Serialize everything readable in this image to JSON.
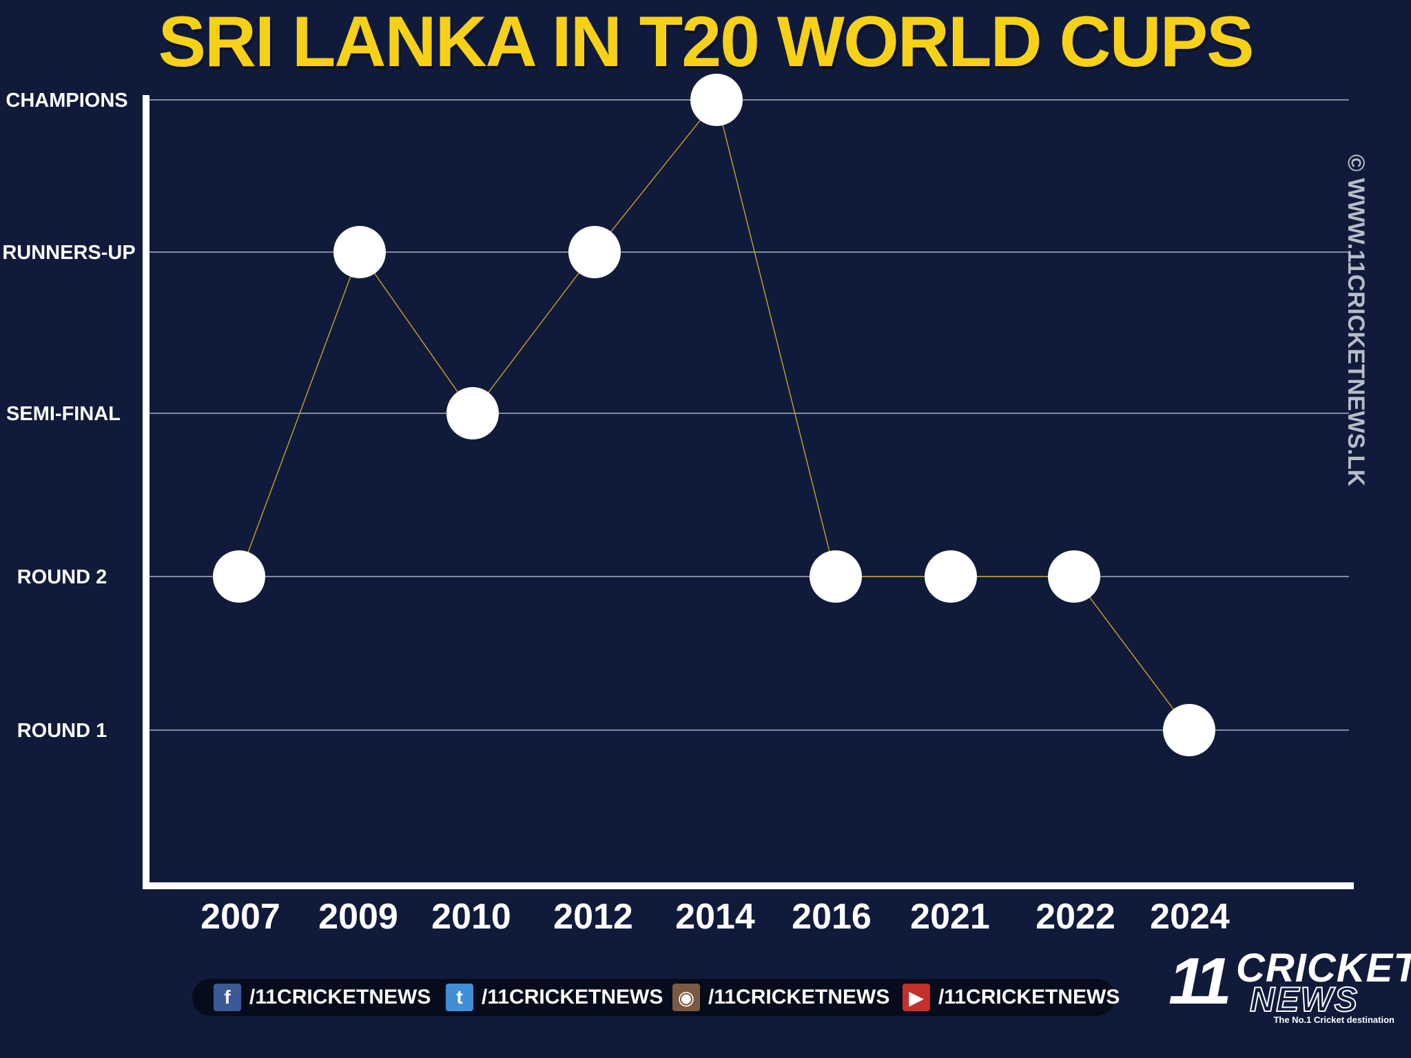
{
  "chart_data": {
    "type": "line",
    "title": "SRI LANKA IN T20 WORLD CUPS",
    "categories": [
      "2007",
      "2009",
      "2010",
      "2012",
      "2014",
      "2016",
      "2021",
      "2022",
      "2024"
    ],
    "y_levels": [
      "ROUND 1",
      "ROUND 2",
      "SEMI-FINAL",
      "RUNNERS-UP",
      "CHAMPIONS"
    ],
    "values": [
      "ROUND 2",
      "RUNNERS-UP",
      "SEMI-FINAL",
      "RUNNERS-UP",
      "CHAMPIONS",
      "ROUND 2",
      "ROUND 2",
      "ROUND 2",
      "ROUND 1"
    ],
    "grid": true,
    "colors": {
      "background": "#101b3b",
      "line": "#c9a227",
      "marker": "#ffffff",
      "title": "#f7d117",
      "axis": "#ffffff",
      "grid": "#c7ccd8"
    }
  },
  "watermark": "© WWW.11CRICKETNEWS.LK",
  "social": [
    {
      "icon": "facebook-icon",
      "handle": "/11CRICKETNEWS",
      "color": "#3b5998",
      "glyph": "f"
    },
    {
      "icon": "twitter-icon",
      "handle": "/11CRICKETNEWS",
      "color": "#3f8fd6",
      "glyph": "t"
    },
    {
      "icon": "instagram-icon",
      "handle": "/11CRICKETNEWS",
      "color": "#7a5a44",
      "glyph": "◉"
    },
    {
      "icon": "youtube-icon",
      "handle": "/11CRICKETNEWS",
      "color": "#c4302b",
      "glyph": "▶"
    }
  ],
  "logo": {
    "number": "11",
    "word1": "CRICKET",
    "word2": "NEWS",
    "tagline": "The No.1 Cricket destination"
  }
}
